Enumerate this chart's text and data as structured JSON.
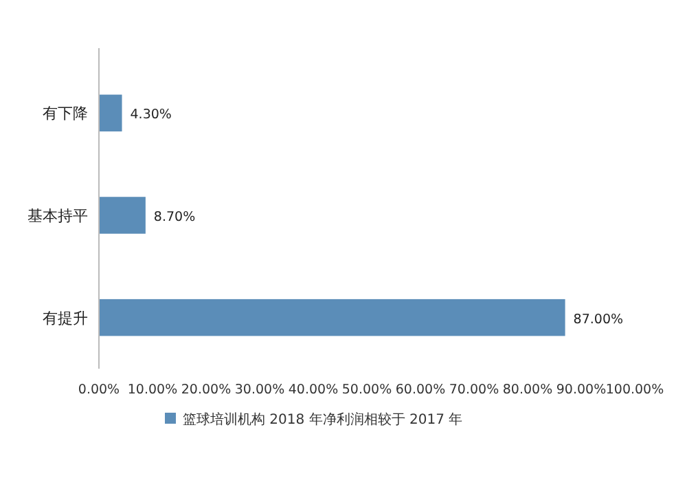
{
  "chart_data": {
    "type": "bar",
    "orientation": "horizontal",
    "categories": [
      "有下降",
      "基本持平",
      "有提升"
    ],
    "series": [
      {
        "name": "篮球培训机构 2018 年净利润相较于 2017 年",
        "color": "#5b8db8",
        "values": [
          4.3,
          8.7,
          87.0
        ],
        "value_labels": [
          "4.30%",
          "8.70%",
          "87.00%"
        ]
      }
    ],
    "xlim": [
      0,
      100
    ],
    "xticks": [
      {
        "value": 0,
        "label": "0.00%"
      },
      {
        "value": 10,
        "label": "10.00%"
      },
      {
        "value": 20,
        "label": "20.00%"
      },
      {
        "value": 30,
        "label": "30.00%"
      },
      {
        "value": 40,
        "label": "40.00%"
      },
      {
        "value": 50,
        "label": "50.00%"
      },
      {
        "value": 60,
        "label": "60.00%"
      },
      {
        "value": 70,
        "label": "70.00%"
      },
      {
        "value": 80,
        "label": "80.00%"
      },
      {
        "value": 90,
        "label": "90.00%"
      },
      {
        "value": 100,
        "label": "100.00%"
      }
    ],
    "grid": false,
    "legend": "bottom"
  }
}
